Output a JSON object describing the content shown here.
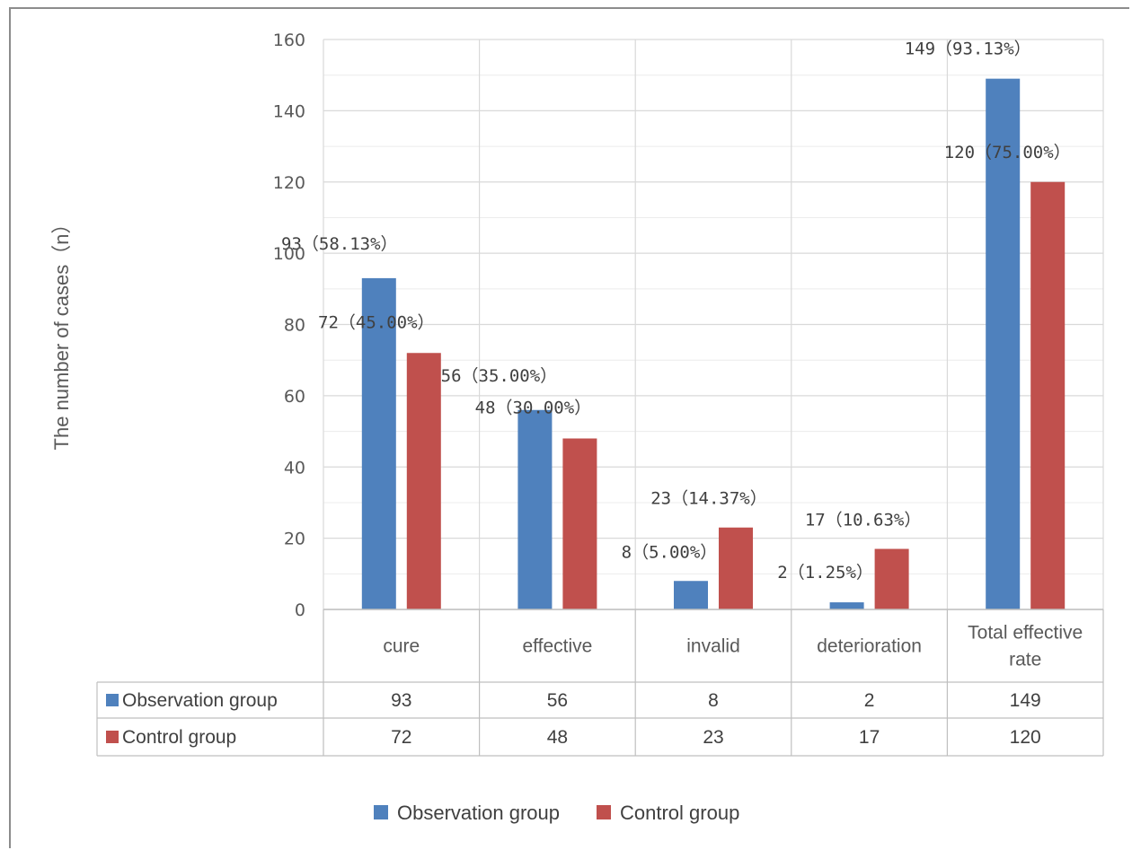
{
  "chart_data": {
    "type": "bar",
    "categories": [
      "cure",
      "effective",
      "invalid",
      "deterioration",
      "Total effective rate"
    ],
    "category_label_lines": [
      [
        "cure"
      ],
      [
        "effective"
      ],
      [
        "invalid"
      ],
      [
        "deterioration"
      ],
      [
        "Total effective",
        "rate"
      ]
    ],
    "series": [
      {
        "name": "Observation group",
        "color": "#4f81bd",
        "values": [
          93,
          56,
          8,
          2,
          149
        ],
        "data_labels": [
          "93（58.13%）",
          "56（35.00%）",
          "8（5.00%）",
          "2（1.25%）",
          "149（93.13%）"
        ],
        "table_values": [
          "93",
          "56",
          "8",
          "2",
          "149"
        ]
      },
      {
        "name": "Control group",
        "color": "#c0504d",
        "values": [
          72,
          48,
          23,
          17,
          120
        ],
        "data_labels": [
          "72（45.00%）",
          "48（30.00%）",
          "23（14.37%）",
          "17（10.63%）",
          "120（75.00%）"
        ],
        "table_values": [
          "72",
          "48",
          "23",
          "17",
          "120"
        ]
      }
    ],
    "title": "",
    "xlabel": "",
    "ylabel": "The number of cases（n）",
    "ylim": [
      0,
      160
    ],
    "yticks": [
      0,
      20,
      40,
      60,
      80,
      100,
      120,
      140,
      160
    ],
    "grid": true,
    "legend": "bottom",
    "data_table": true
  }
}
